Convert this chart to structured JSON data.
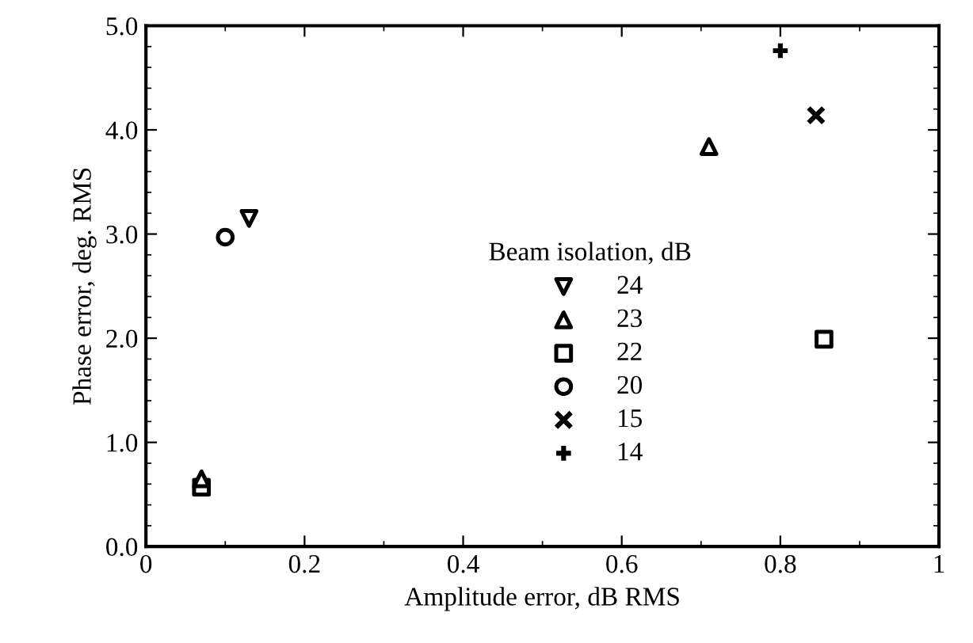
{
  "chart_data": {
    "type": "scatter",
    "xlabel": "Amplitude error, dB RMS",
    "ylabel": "Phase error, deg. RMS",
    "legend_title": "Beam isolation, dB",
    "legend": "center",
    "xlim": [
      0,
      1
    ],
    "ylim": [
      0,
      5
    ],
    "xticks": [
      0,
      0.2,
      0.4,
      0.6,
      0.8,
      1
    ],
    "yticks": [
      {
        "value": 0,
        "label": "0.0"
      },
      {
        "value": 1,
        "label": "1.0"
      },
      {
        "value": 2,
        "label": "2.0"
      },
      {
        "value": 3,
        "label": "3.0"
      },
      {
        "value": 4,
        "label": "4.0"
      },
      {
        "value": 5,
        "label": "5.0"
      }
    ],
    "grid": false,
    "series": [
      {
        "name": "24",
        "marker": "triangle_down",
        "color": "#000000",
        "x": [
          0.13
        ],
        "values": [
          3.15
        ]
      },
      {
        "name": "23",
        "marker": "triangle",
        "color": "#000000",
        "x": [
          0.07,
          0.71
        ],
        "values": [
          0.65,
          3.84
        ]
      },
      {
        "name": "22",
        "marker": "square",
        "color": "#000000",
        "x": [
          0.07,
          0.855
        ],
        "values": [
          0.57,
          1.99
        ]
      },
      {
        "name": "20",
        "marker": "circle",
        "color": "#000000",
        "x": [
          0.1
        ],
        "values": [
          2.97
        ]
      },
      {
        "name": "15",
        "marker": "cross",
        "color": "#000000",
        "x": [
          0.845
        ],
        "values": [
          4.14
        ]
      },
      {
        "name": "14",
        "marker": "plus",
        "color": "#000000",
        "x": [
          0.8
        ],
        "values": [
          4.76
        ]
      }
    ]
  }
}
